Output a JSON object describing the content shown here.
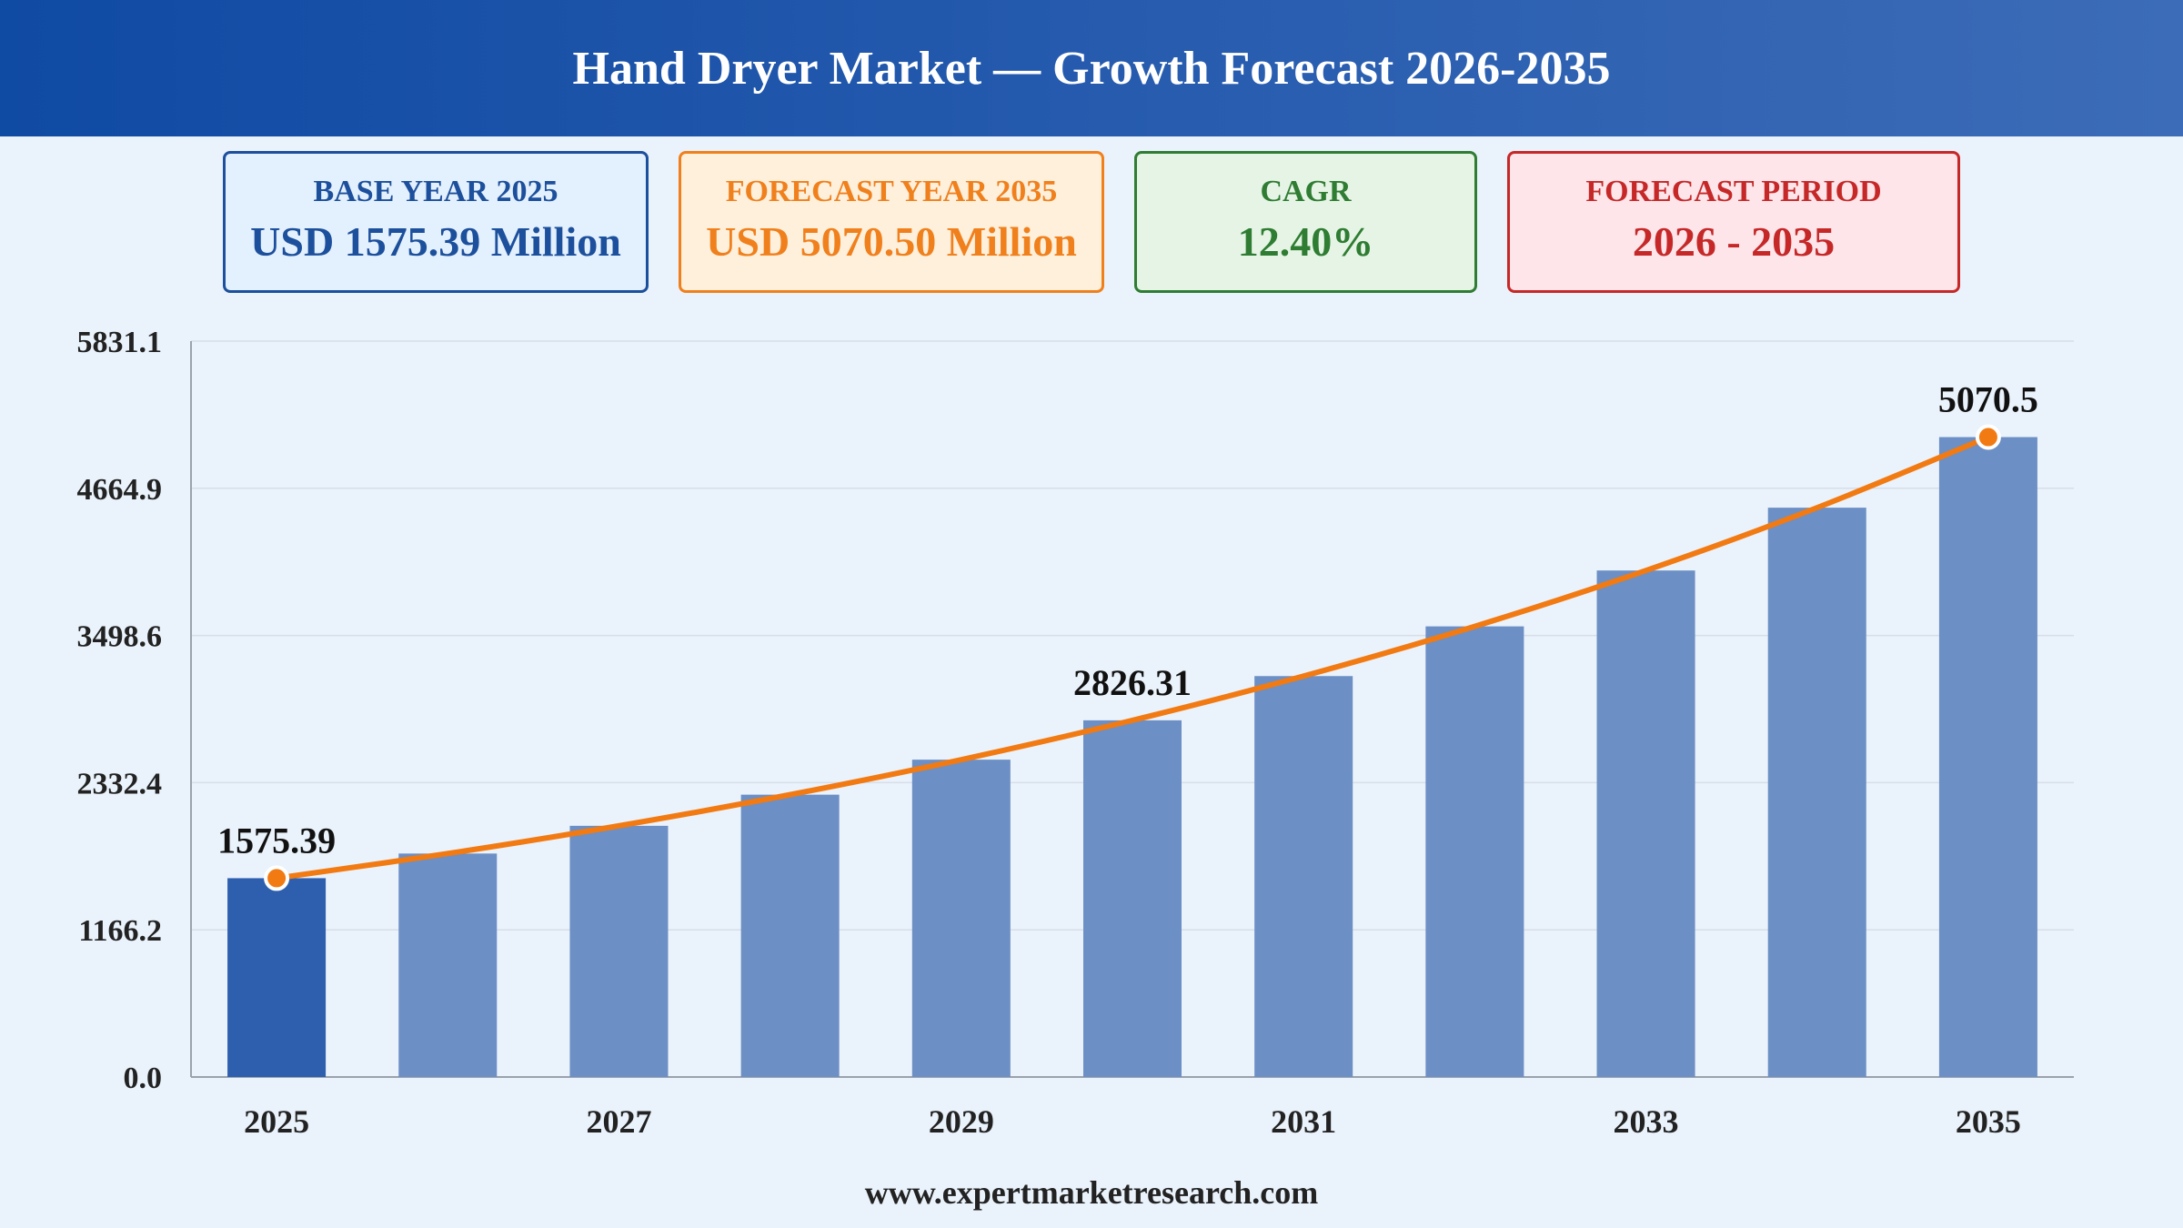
{
  "header": {
    "title": "Hand Dryer Market — Growth Forecast 2026-2035"
  },
  "cards": {
    "base": {
      "label": "BASE YEAR 2025",
      "value": "USD 1575.39 Million"
    },
    "forecast": {
      "label": "FORECAST YEAR 2035",
      "value": "USD 5070.50 Million"
    },
    "cagr": {
      "label": "CAGR",
      "value": "12.40%"
    },
    "period": {
      "label": "FORECAST PERIOD",
      "value": "2026 - 2035"
    }
  },
  "colors": {
    "base_bar": "#2e5fae",
    "bar": "#6c8fc5",
    "line": "#f27a12",
    "grid": "#d7dee8",
    "axis": "#9aa3ad",
    "text": "#222222"
  },
  "chart_data": {
    "type": "bar",
    "title": "",
    "xlabel": "",
    "ylabel": "",
    "categories": [
      "2025",
      "2026",
      "2027",
      "2028",
      "2029",
      "2030",
      "2031",
      "2032",
      "2033",
      "2034",
      "2035"
    ],
    "x_tick_labels": [
      "2025",
      "2027",
      "2029",
      "2031",
      "2033",
      "2035"
    ],
    "values": [
      1575.39,
      1770.7,
      1990.3,
      2237.1,
      2514.5,
      2826.31,
      3176.8,
      3570.7,
      4013.5,
      4511.2,
      5070.5
    ],
    "trend_line": [
      1575.39,
      1770.7,
      1990.3,
      2237.1,
      2514.5,
      2826.31,
      3176.8,
      3570.7,
      4013.5,
      4511.2,
      5070.5
    ],
    "data_labels": [
      {
        "index": 0,
        "text": "1575.39"
      },
      {
        "index": 5,
        "text": "2826.31"
      },
      {
        "index": 10,
        "text": "5070.5"
      }
    ],
    "marked_points": [
      0,
      10
    ],
    "y_ticks": [
      "0.0",
      "1166.2",
      "2332.4",
      "3498.6",
      "4664.9",
      "5831.1"
    ],
    "ylim": [
      0,
      5831.1
    ],
    "grid": true,
    "legend": "none"
  },
  "footer": {
    "text": "www.expertmarketresearch.com"
  }
}
